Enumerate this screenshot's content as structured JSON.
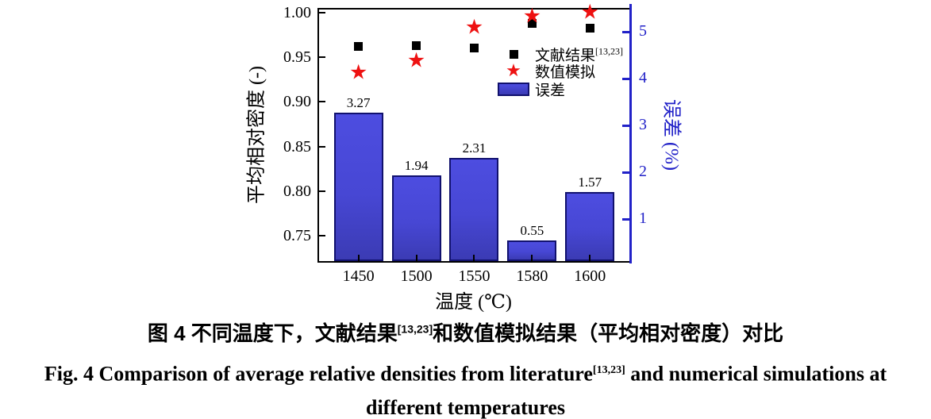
{
  "chart_data": {
    "type": "bar",
    "subtype": "dual-axis bar + scatter markers",
    "categories": [
      "1450",
      "1500",
      "1550",
      "1580",
      "1600"
    ],
    "series": [
      {
        "name": "文献结果",
        "name_sup": "[13,23]",
        "marker": "black-square",
        "axis": "left",
        "color": "#000000",
        "values": [
          0.962,
          0.963,
          0.96,
          0.988,
          0.982
        ]
      },
      {
        "name": "数值模拟",
        "marker": "red-star",
        "axis": "left",
        "color": "#ee1111",
        "values": [
          0.931,
          0.945,
          0.982,
          0.994,
          0.999
        ]
      },
      {
        "name": "误差",
        "marker": "blue-bar",
        "axis": "right",
        "color": "#4747d4",
        "values": [
          3.27,
          1.94,
          2.31,
          0.55,
          1.57
        ],
        "labels": [
          "3.27",
          "1.94",
          "2.31",
          "0.55",
          "1.57"
        ]
      }
    ],
    "xlabel": "温度 (℃)",
    "ylabel_left": "平均相对密度 (-)",
    "ylabel_right": "误差 (%)",
    "ylim_left": [
      0.72,
      1.005
    ],
    "ylim_right": [
      0.07,
      5.51
    ],
    "yticks_left": [
      "1.00",
      "0.95",
      "0.90",
      "0.85",
      "0.80",
      "0.75"
    ],
    "yticks_right": [
      "1",
      "2",
      "3",
      "4",
      "5"
    ],
    "grid": false,
    "legend_position": "inside-upper-right",
    "axis_color_right": "#2121c8"
  },
  "legend": {
    "literature": "文献结果",
    "literature_sup": "[13,23]",
    "simulation": "数值模拟",
    "error": "误差"
  },
  "caption": {
    "zh_prefix": "图 4  不同温度下，文献结果",
    "zh_sup": "[13,23]",
    "zh_suffix": "和数值模拟结果（平均相对密度）对比",
    "en_prefix": "Fig. 4 Comparison of average relative densities from literature",
    "en_sup": "[13,23]",
    "en_suffix": " and numerical simulations at",
    "en_line2": "different temperatures"
  }
}
